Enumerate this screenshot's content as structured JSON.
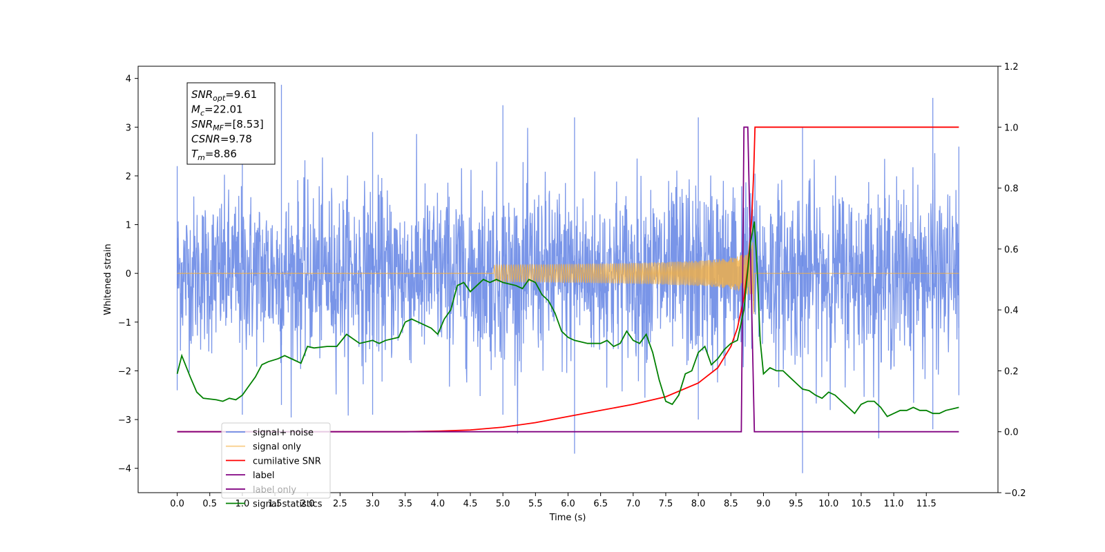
{
  "chart_data": {
    "type": "line",
    "title": "",
    "xlabel": "Time (s)",
    "ylabel": "Whitened strain",
    "xlim": [
      -0.6,
      12.6
    ],
    "ylim": [
      -4.5,
      4.25
    ],
    "y2lim": [
      -0.2,
      1.2
    ],
    "x_ticks": [
      0.0,
      0.5,
      1.0,
      1.5,
      2.0,
      2.5,
      3.0,
      3.5,
      4.0,
      4.5,
      5.0,
      5.5,
      6.0,
      6.5,
      7.0,
      7.5,
      8.0,
      8.5,
      9.0,
      9.5,
      10.0,
      10.5,
      11.0,
      11.5
    ],
    "x_tick_labels": [
      "0.0",
      "0.5",
      "1.0",
      "1.5",
      "2.0",
      "2.5",
      "3.0",
      "3.5",
      "4.0",
      "4.5",
      "5.0",
      "5.5",
      "6.0",
      "6.5",
      "7.0",
      "7.5",
      "8.0",
      "8.5",
      "9.0",
      "9.5",
      "10.0",
      "10.5",
      "11.0",
      "11.5"
    ],
    "y_ticks": [
      -4,
      -3,
      -2,
      -1,
      0,
      1,
      2,
      3,
      4
    ],
    "y_tick_labels": [
      "−4",
      "−3",
      "−2",
      "−1",
      "0",
      "1",
      "2",
      "3",
      "4"
    ],
    "y2_ticks": [
      -0.2,
      0.0,
      0.2,
      0.4,
      0.6,
      0.8,
      1.0,
      1.2
    ],
    "y2_tick_labels": [
      "−0.2",
      "0.0",
      "0.2",
      "0.4",
      "0.6",
      "0.8",
      "1.0",
      "1.2"
    ],
    "grid": false,
    "legend_position": "lower-left",
    "merger_time": 8.86,
    "duration": 12.0,
    "noise_envelope": [
      {
        "x": 0.0,
        "upper": 1.8,
        "lower": -1.9,
        "peak_high": 2.2,
        "peak_low": -2.4
      },
      {
        "x": 1.0,
        "upper": 2.0,
        "lower": -2.0,
        "peak_high": 3.1,
        "peak_low": -2.9
      },
      {
        "x": 1.6,
        "upper": 2.1,
        "lower": -2.0,
        "peak_high": 3.87,
        "peak_low": -2.7
      },
      {
        "x": 3.0,
        "upper": 2.1,
        "lower": -2.1,
        "peak_high": 2.9,
        "peak_low": -2.9
      },
      {
        "x": 5.0,
        "upper": 2.2,
        "lower": -2.1,
        "peak_high": 3.45,
        "peak_low": -2.9
      },
      {
        "x": 6.1,
        "upper": 2.1,
        "lower": -2.2,
        "peak_high": 3.2,
        "peak_low": -3.7
      },
      {
        "x": 8.0,
        "upper": 2.2,
        "lower": -2.2,
        "peak_high": 3.2,
        "peak_low": -3.0
      },
      {
        "x": 9.6,
        "upper": 2.1,
        "lower": -2.2,
        "peak_high": 3.0,
        "peak_low": -4.1
      },
      {
        "x": 11.6,
        "upper": 2.2,
        "lower": -2.2,
        "peak_high": 3.6,
        "peak_low": -3.2
      },
      {
        "x": 12.0,
        "upper": 1.8,
        "lower": -1.8,
        "peak_high": 2.6,
        "peak_low": -2.5
      }
    ],
    "series": [
      {
        "name": "signal+ noise",
        "axis": "left",
        "color": "#6a8ae6",
        "kind": "noise"
      },
      {
        "name": "signal only",
        "axis": "left",
        "color": "#f5b041",
        "kind": "chirp",
        "amplitude_at_merger": 1.0
      },
      {
        "name": "cumilative SNR",
        "axis": "right",
        "color": "#ff0000",
        "points": [
          [
            0.0,
            0.0
          ],
          [
            3.5,
            0.0
          ],
          [
            4.0,
            0.002
          ],
          [
            4.5,
            0.006
          ],
          [
            5.0,
            0.015
          ],
          [
            5.5,
            0.03
          ],
          [
            6.0,
            0.05
          ],
          [
            6.5,
            0.07
          ],
          [
            7.0,
            0.09
          ],
          [
            7.5,
            0.115
          ],
          [
            8.0,
            0.16
          ],
          [
            8.3,
            0.21
          ],
          [
            8.5,
            0.28
          ],
          [
            8.6,
            0.34
          ],
          [
            8.7,
            0.44
          ],
          [
            8.76,
            0.54
          ],
          [
            8.82,
            0.7
          ],
          [
            8.85,
            0.85
          ],
          [
            8.87,
            1.0
          ],
          [
            12.0,
            1.0
          ]
        ]
      },
      {
        "name": "label",
        "axis": "right",
        "color": "#800080",
        "points": [
          [
            0.0,
            0.0
          ],
          [
            8.66,
            0.0
          ],
          [
            8.7,
            1.0
          ],
          [
            8.76,
            1.0
          ],
          [
            8.86,
            0.0
          ],
          [
            12.0,
            0.0
          ]
        ]
      },
      {
        "name": "label only",
        "axis": "right",
        "color": "#800080",
        "hidden_behind_legend": true,
        "points": []
      },
      {
        "name": "signal statistics",
        "axis": "right",
        "color": "#008000",
        "points": [
          [
            0.0,
            0.19
          ],
          [
            0.07,
            0.25
          ],
          [
            0.2,
            0.18
          ],
          [
            0.3,
            0.13
          ],
          [
            0.4,
            0.11
          ],
          [
            0.6,
            0.105
          ],
          [
            0.7,
            0.1
          ],
          [
            0.8,
            0.11
          ],
          [
            0.9,
            0.105
          ],
          [
            1.0,
            0.12
          ],
          [
            1.1,
            0.15
          ],
          [
            1.2,
            0.18
          ],
          [
            1.3,
            0.22
          ],
          [
            1.4,
            0.23
          ],
          [
            1.55,
            0.24
          ],
          [
            1.65,
            0.25
          ],
          [
            1.8,
            0.235
          ],
          [
            1.9,
            0.225
          ],
          [
            2.0,
            0.28
          ],
          [
            2.1,
            0.275
          ],
          [
            2.3,
            0.28
          ],
          [
            2.45,
            0.28
          ],
          [
            2.6,
            0.32
          ],
          [
            2.7,
            0.305
          ],
          [
            2.8,
            0.29
          ],
          [
            3.0,
            0.3
          ],
          [
            3.1,
            0.29
          ],
          [
            3.2,
            0.3
          ],
          [
            3.4,
            0.31
          ],
          [
            3.5,
            0.36
          ],
          [
            3.6,
            0.37
          ],
          [
            3.7,
            0.36
          ],
          [
            3.8,
            0.35
          ],
          [
            3.9,
            0.34
          ],
          [
            4.0,
            0.32
          ],
          [
            4.1,
            0.37
          ],
          [
            4.2,
            0.4
          ],
          [
            4.3,
            0.48
          ],
          [
            4.4,
            0.49
          ],
          [
            4.5,
            0.46
          ],
          [
            4.6,
            0.48
          ],
          [
            4.7,
            0.5
          ],
          [
            4.8,
            0.49
          ],
          [
            4.9,
            0.5
          ],
          [
            5.0,
            0.49
          ],
          [
            5.2,
            0.48
          ],
          [
            5.3,
            0.47
          ],
          [
            5.4,
            0.5
          ],
          [
            5.5,
            0.49
          ],
          [
            5.6,
            0.45
          ],
          [
            5.7,
            0.43
          ],
          [
            5.8,
            0.39
          ],
          [
            5.9,
            0.33
          ],
          [
            6.0,
            0.31
          ],
          [
            6.1,
            0.3
          ],
          [
            6.3,
            0.29
          ],
          [
            6.5,
            0.29
          ],
          [
            6.6,
            0.3
          ],
          [
            6.7,
            0.28
          ],
          [
            6.8,
            0.29
          ],
          [
            6.9,
            0.33
          ],
          [
            7.0,
            0.3
          ],
          [
            7.1,
            0.29
          ],
          [
            7.2,
            0.32
          ],
          [
            7.3,
            0.26
          ],
          [
            7.4,
            0.17
          ],
          [
            7.5,
            0.1
          ],
          [
            7.6,
            0.09
          ],
          [
            7.7,
            0.12
          ],
          [
            7.8,
            0.19
          ],
          [
            7.9,
            0.2
          ],
          [
            8.0,
            0.26
          ],
          [
            8.1,
            0.28
          ],
          [
            8.2,
            0.22
          ],
          [
            8.3,
            0.24
          ],
          [
            8.4,
            0.27
          ],
          [
            8.5,
            0.29
          ],
          [
            8.6,
            0.3
          ],
          [
            8.7,
            0.4
          ],
          [
            8.8,
            0.62
          ],
          [
            8.86,
            0.69
          ],
          [
            8.9,
            0.55
          ],
          [
            8.95,
            0.3
          ],
          [
            9.0,
            0.19
          ],
          [
            9.1,
            0.21
          ],
          [
            9.2,
            0.2
          ],
          [
            9.3,
            0.2
          ],
          [
            9.4,
            0.18
          ],
          [
            9.5,
            0.16
          ],
          [
            9.6,
            0.14
          ],
          [
            9.7,
            0.135
          ],
          [
            9.8,
            0.12
          ],
          [
            9.9,
            0.11
          ],
          [
            10.0,
            0.13
          ],
          [
            10.1,
            0.12
          ],
          [
            10.2,
            0.1
          ],
          [
            10.3,
            0.08
          ],
          [
            10.4,
            0.06
          ],
          [
            10.5,
            0.09
          ],
          [
            10.6,
            0.1
          ],
          [
            10.7,
            0.1
          ],
          [
            10.8,
            0.08
          ],
          [
            10.9,
            0.05
          ],
          [
            11.0,
            0.06
          ],
          [
            11.1,
            0.07
          ],
          [
            11.2,
            0.07
          ],
          [
            11.3,
            0.08
          ],
          [
            11.4,
            0.07
          ],
          [
            11.5,
            0.07
          ],
          [
            11.6,
            0.06
          ],
          [
            11.7,
            0.06
          ],
          [
            11.8,
            0.07
          ],
          [
            11.9,
            0.075
          ],
          [
            12.0,
            0.08
          ]
        ]
      }
    ],
    "annotation": {
      "lines": [
        {
          "base": "SNR",
          "sub": "opt",
          "value": "=9.61"
        },
        {
          "base": "M",
          "sub": "c",
          "value": "=22.01"
        },
        {
          "base": "SNR",
          "sub": "MF",
          "value": "=[8.53]"
        },
        {
          "base": "CSNR",
          "sub": "",
          "value": "=9.78"
        },
        {
          "base": "T",
          "sub": "m",
          "value": "=8.86"
        }
      ]
    }
  }
}
